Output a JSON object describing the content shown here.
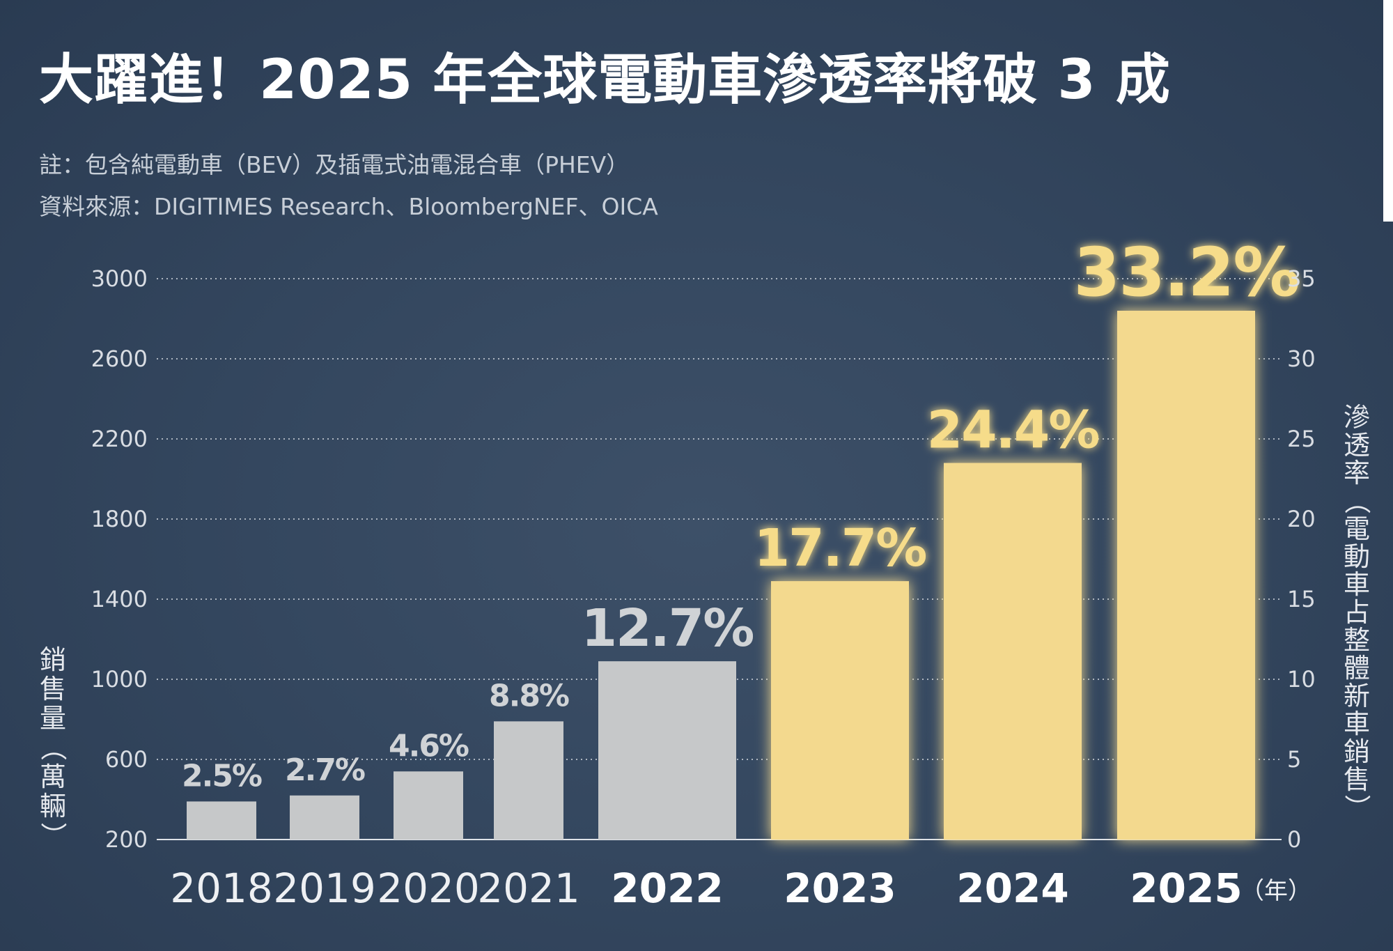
{
  "title": "大躍進！2025 年全球電動車滲透率將破 3 成",
  "note": "註：包含純電動車（BEV）及插電式油電混合車（PHEV）",
  "source": "資料來源：DIGITIMES Research、BloombergNEF、OICA",
  "chart_data": {
    "type": "bar",
    "title": "大躍進！2025 年全球電動車滲透率將破 3 成",
    "xlabel": "（年）",
    "ylabel": "銷售量（萬輛）",
    "y2label": "滲透率（電動車占整體新車銷售）",
    "categories": [
      "2018",
      "2019",
      "2020",
      "2021",
      "2022",
      "2023",
      "2024",
      "2025"
    ],
    "values": [
      390,
      420,
      540,
      790,
      1090,
      1490,
      2080,
      2840
    ],
    "penetration_labels": [
      "2.5%",
      "2.7%",
      "4.6%",
      "8.8%",
      "12.7%",
      "17.7%",
      "24.4%",
      "33.2%"
    ],
    "ylim": [
      200,
      3000
    ],
    "y2lim": [
      0,
      35
    ],
    "y_ticks": [
      "200",
      "600",
      "1000",
      "1400",
      "1800",
      "2200",
      "2600",
      "3000"
    ],
    "y2_ticks": [
      "0",
      "5",
      "10",
      "15",
      "20",
      "25",
      "30",
      "35"
    ],
    "grid": true,
    "colors": {
      "historical_bar": "#c6c8c9",
      "forecast_bar": "#f3d98e",
      "historical_label": "#d0d3d6",
      "forecast_label": "#f6dc8a",
      "gridline": "#aeb6c1"
    }
  }
}
